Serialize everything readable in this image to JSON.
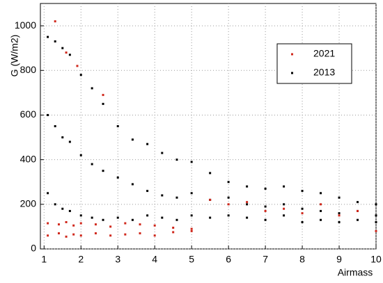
{
  "chart_data": {
    "type": "scatter",
    "ylabel": "G (W/m2)",
    "xlabel": "Airmass",
    "xlim": [
      0.9,
      10
    ],
    "ylim": [
      0,
      1100
    ],
    "xticks": [
      1,
      2,
      3,
      4,
      5,
      6,
      7,
      8,
      9,
      10
    ],
    "yticks": [
      0,
      200,
      400,
      600,
      800,
      1000
    ],
    "grid": true,
    "legend": "upper right",
    "series": [
      {
        "name": "2021",
        "color": "#d0281c",
        "x": [
          1.1,
          1.1,
          1.4,
          1.4,
          1.6,
          1.6,
          1.8,
          1.8,
          2,
          2,
          2.4,
          2.4,
          2.8,
          2.8,
          3.2,
          3.2,
          3.6,
          3.6,
          4,
          4,
          4.5,
          4.5,
          5,
          5,
          1.3,
          1.6,
          1.9,
          2.6,
          5.5,
          6,
          6.5,
          7,
          7.5,
          8,
          8.5,
          9,
          9.5,
          10
        ],
        "values": [
          60,
          115,
          70,
          110,
          55,
          120,
          65,
          105,
          60,
          115,
          70,
          110,
          60,
          100,
          65,
          115,
          70,
          110,
          60,
          105,
          75,
          95,
          80,
          90,
          1020,
          880,
          820,
          690,
          220,
          200,
          210,
          170,
          180,
          160,
          200,
          150,
          170,
          80
        ]
      },
      {
        "name": "2013",
        "color": "#000000",
        "x": [
          1.1,
          1.1,
          1.1,
          1.3,
          1.3,
          1.3,
          1.5,
          1.5,
          1.5,
          1.7,
          1.7,
          1.7,
          2,
          2,
          2,
          2.3,
          2.3,
          2.3,
          2.6,
          2.6,
          2.6,
          3,
          3,
          3,
          3.4,
          3.4,
          3.4,
          3.8,
          3.8,
          3.8,
          4.2,
          4.2,
          4.2,
          4.6,
          4.6,
          4.6,
          5,
          5,
          5,
          5.5,
          5.5,
          5.5,
          6,
          6,
          6,
          6.5,
          6.5,
          6.5,
          7,
          7,
          7,
          7.5,
          7.5,
          7.5,
          8,
          8,
          8,
          8.5,
          8.5,
          8.5,
          9,
          9,
          9,
          9.5,
          9.5,
          9.5,
          10,
          10,
          10
        ],
        "values": [
          950,
          600,
          250,
          930,
          550,
          200,
          900,
          500,
          180,
          870,
          480,
          170,
          780,
          420,
          150,
          720,
          380,
          140,
          650,
          350,
          130,
          550,
          320,
          140,
          490,
          290,
          130,
          470,
          260,
          150,
          430,
          240,
          140,
          400,
          230,
          130,
          390,
          250,
          150,
          340,
          220,
          140,
          300,
          230,
          150,
          280,
          200,
          140,
          270,
          190,
          130,
          280,
          200,
          150,
          260,
          180,
          120,
          250,
          170,
          130,
          230,
          160,
          120,
          210,
          170,
          130,
          200,
          150,
          120
        ]
      }
    ]
  }
}
